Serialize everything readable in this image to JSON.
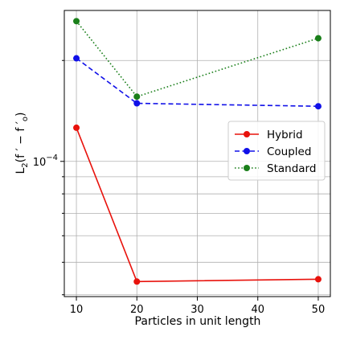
{
  "chart_data": {
    "type": "line",
    "xlabel": "Particles in unit length",
    "ylabel": "L_2(f' − f'_o)",
    "yscale": "log",
    "ytick_label": "10^-4",
    "x": [
      10,
      20,
      50
    ],
    "xticks": [
      10,
      20,
      30,
      40,
      50
    ],
    "xlim": [
      8,
      52
    ],
    "ylim": [
      3.95e-05,
      0.000282
    ],
    "grid": true,
    "legend": "center-right",
    "series": [
      {
        "name": "Hybrid",
        "values": [
          0.000126,
          4.38e-05,
          4.45e-05
        ],
        "color": "#e8120c",
        "linestyle": "solid",
        "marker": "circle"
      },
      {
        "name": "Coupled",
        "values": [
          0.000203,
          0.000149,
          0.000146
        ],
        "color": "#1010e8",
        "linestyle": "dashed",
        "marker": "circle"
      },
      {
        "name": "Standard",
        "values": [
          0.000262,
          0.000156,
          0.000233
        ],
        "color": "#1a7f1a",
        "linestyle": "dotted",
        "marker": "circle"
      }
    ]
  }
}
